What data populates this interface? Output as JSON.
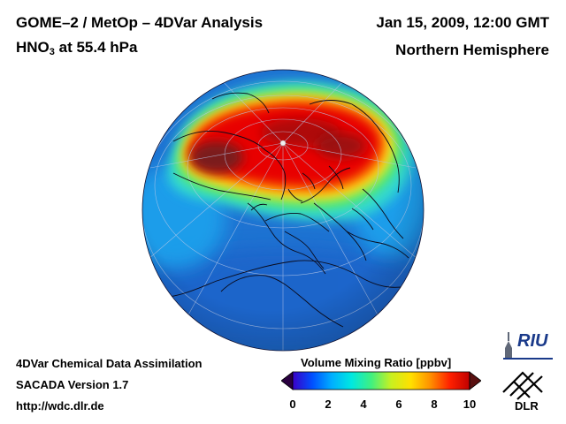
{
  "header": {
    "title": "GOME–2 / MetOp – 4DVar Analysis",
    "species_prefix": "HNO",
    "species_subscript": "3",
    "species_suffix": " at 55.4 hPa",
    "datetime": "Jan 15, 2009, 12:00 GMT",
    "region": "Northern Hemisphere"
  },
  "footer": {
    "line1": "4DVar Chemical Data Assimilation",
    "line2": "SACADA Version 1.7",
    "line3": "http://wdc.dlr.de"
  },
  "colorbar": {
    "title": "Volume Mixing Ratio [ppbv]",
    "ticks": [
      "0",
      "2",
      "4",
      "6",
      "8",
      "10"
    ],
    "min": 0,
    "max": 10,
    "colors": [
      "#2a0040",
      "#3a00c8",
      "#0050ff",
      "#00b0ff",
      "#00e8e0",
      "#40f080",
      "#c8f020",
      "#ffe000",
      "#ff9000",
      "#ff2000",
      "#c00000",
      "#5a1010"
    ]
  },
  "logos": {
    "riu": "RIU",
    "dlr": "DLR"
  },
  "colors": {
    "ocean_base": "#1e73d2",
    "max_core": "#7a1a1a",
    "high": "#e00000",
    "medium": "#ff8c00",
    "low": "#40c8a0"
  }
}
